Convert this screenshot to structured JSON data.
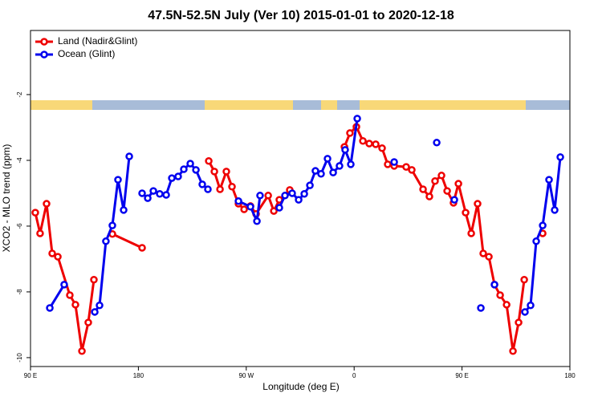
{
  "chart_data": {
    "type": "line",
    "title": "47.5N-52.5N July (Ver 10)   2015-01-01 to 2020-12-18",
    "x_label": "Longitude (deg E)",
    "y_label": "XCO2 - MLO trend (ppm)",
    "xlim": [
      90,
      540
    ],
    "ylim": [
      -10.27,
      -0.05
    ],
    "xticks": [
      {
        "value": 90,
        "label": "90 E"
      },
      {
        "value": 180,
        "label": "180"
      },
      {
        "value": 270,
        "label": "90 W"
      },
      {
        "value": 360,
        "label": "0"
      },
      {
        "value": 450,
        "label": "90 E"
      },
      {
        "value": 540,
        "label": "180"
      }
    ],
    "yticks": [
      -10,
      -8,
      -6,
      -4,
      -2
    ],
    "legend": "top-left",
    "series": [
      {
        "name": "Land (Nadir&Glint)",
        "color": "#ee0000",
        "x": [
          94.0,
          98.0,
          103.4,
          108.1,
          112.8,
          122.8,
          127.5,
          132.9,
          138.2,
          142.9,
          null,
          158.3,
          183.1,
          null,
          238.7,
          243.4,
          248.1,
          253.4,
          258.1,
          263.5,
          268.2,
          273.5,
          278.2,
          288.3,
          293.0,
          297.6,
          306.3,
          null,
          351.9,
          356.5,
          361.9,
          367.3,
          372.6,
          378.0,
          383.3,
          388.0,
          393.4,
          403.4,
          408.1,
          417.5,
          422.8,
          427.5,
          432.9,
          437.6,
          442.9,
          447.0,
          453.0,
          457.7,
          463.0,
          467.7,
          472.4,
          477.1,
          481.8,
          487.2,
          492.5,
          497.2,
          501.9,
          null,
          517.3
        ],
        "values": [
          -5.59,
          -6.22,
          -5.32,
          -6.83,
          -6.93,
          -8.1,
          -8.39,
          -9.8,
          -8.93,
          -7.63,
          null,
          -6.24,
          -6.66,
          null,
          -4.02,
          -4.34,
          -4.88,
          -4.34,
          -4.8,
          -5.32,
          -5.49,
          -5.39,
          -5.63,
          -5.07,
          -5.54,
          -5.2,
          -4.9,
          null,
          -3.59,
          -3.17,
          -2.98,
          -3.41,
          -3.49,
          -3.51,
          -3.63,
          -4.12,
          -4.17,
          -4.2,
          -4.29,
          -4.88,
          -5.1,
          -4.63,
          -4.46,
          -4.93,
          -5.29,
          -4.71,
          -5.59,
          -6.22,
          -5.32,
          -6.83,
          -6.93,
          -7.78,
          -8.1,
          -8.39,
          -9.8,
          -8.93,
          -7.63,
          null,
          -6.22
        ]
      },
      {
        "name": "Ocean (Glint)",
        "color": "#0000ee",
        "x": [
          106.1,
          118.1,
          null,
          143.6,
          147.6,
          152.9,
          158.3,
          163.0,
          167.7,
          172.4,
          null,
          183.1,
          187.8,
          192.5,
          197.8,
          203.2,
          207.9,
          213.2,
          217.9,
          223.3,
          228.0,
          233.3,
          238.0,
          null,
          263.5,
          273.5,
          278.9,
          281.5,
          null,
          297.6,
          302.3,
          308.3,
          313.7,
          318.4,
          323.1,
          327.7,
          332.4,
          337.8,
          342.5,
          347.8,
          352.5,
          357.2,
          362.6,
          null,
          393.4,
          null,
          428.9,
          null,
          443.6,
          null,
          465.7,
          null,
          477.1,
          null,
          502.5,
          507.2,
          511.9,
          517.3,
          522.6,
          527.3,
          532.0
        ],
        "values": [
          -8.49,
          -7.78,
          null,
          -8.61,
          -8.41,
          -6.46,
          -5.98,
          -4.59,
          -5.51,
          -3.88,
          null,
          -5.0,
          -5.15,
          -4.93,
          -5.02,
          -5.05,
          -4.54,
          -4.49,
          -4.27,
          -4.1,
          -4.29,
          -4.73,
          -4.88,
          null,
          -5.24,
          -5.41,
          -5.85,
          -5.07,
          null,
          -5.44,
          -5.07,
          -5.0,
          -5.2,
          -5.02,
          -4.76,
          -4.32,
          -4.41,
          -3.95,
          -4.37,
          -4.17,
          -3.68,
          -4.12,
          -2.73,
          null,
          -4.05,
          null,
          -3.46,
          null,
          -5.2,
          null,
          -8.49,
          null,
          -7.78,
          null,
          -8.61,
          -8.41,
          -6.46,
          -5.98,
          -4.59,
          -5.51,
          -3.9
        ]
      }
    ]
  }
}
